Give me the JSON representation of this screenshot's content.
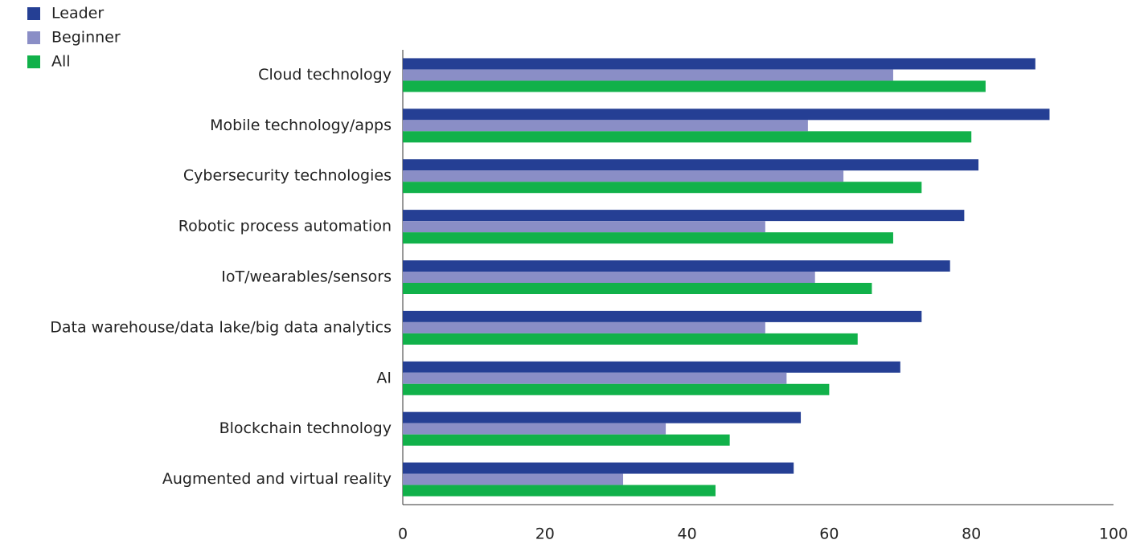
{
  "chart_data": {
    "type": "bar",
    "orientation": "horizontal",
    "categories": [
      "Cloud technology",
      "Mobile technology/apps",
      "Cybersecurity technologies",
      "Robotic process automation",
      "IoT/wearables/sensors",
      "Data warehouse/data lake/big data analytics",
      "AI",
      "Blockchain technology",
      "Augmented and virtual reality"
    ],
    "series": [
      {
        "name": "Leader",
        "color": "#253f94",
        "values": [
          89,
          91,
          81,
          79,
          77,
          73,
          70,
          56,
          55
        ]
      },
      {
        "name": "Beginner",
        "color": "#8a8ec6",
        "values": [
          69,
          57,
          62,
          51,
          58,
          51,
          54,
          37,
          31
        ]
      },
      {
        "name": "All",
        "color": "#11b14a",
        "values": [
          82,
          80,
          73,
          69,
          66,
          64,
          60,
          46,
          44
        ]
      }
    ],
    "xlim": [
      0,
      100
    ],
    "xticks": [
      0,
      20,
      40,
      60,
      80,
      100
    ],
    "grid": false,
    "legend": "upper left"
  }
}
